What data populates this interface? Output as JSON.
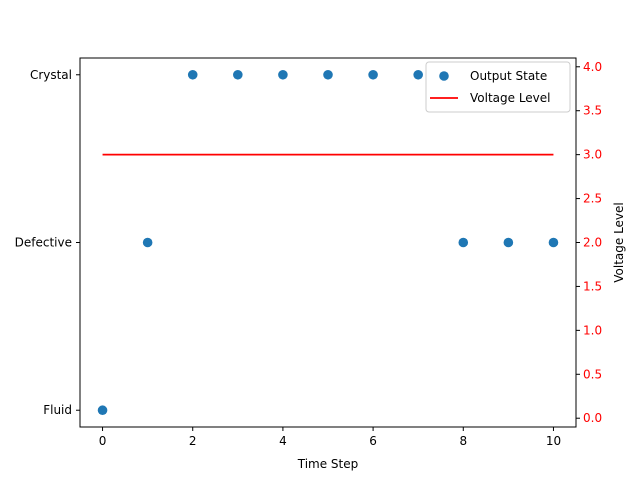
{
  "chart_data": {
    "type": "scatter",
    "title": "",
    "xlabel": "Time Step",
    "ylabel": "",
    "y2label": "Voltage Level",
    "xlim": [
      -0.5,
      10.5
    ],
    "xticks": [
      0,
      2,
      4,
      6,
      8,
      10
    ],
    "ylim": [
      -0.1,
      2.1
    ],
    "y_categories": [
      "Fluid",
      "Defective",
      "Crystal"
    ],
    "y2lim": [
      -0.1,
      4.1
    ],
    "y2ticks": [
      "0.0",
      "0.5",
      "1.0",
      "1.5",
      "2.0",
      "2.5",
      "3.0",
      "3.5",
      "4.0"
    ],
    "grid": false,
    "legend": "top-right",
    "series": [
      {
        "name": "Output State",
        "type": "scatter",
        "axis": "left",
        "color": "#1f77b4",
        "x": [
          0,
          1,
          2,
          3,
          4,
          5,
          6,
          7,
          8,
          9,
          10
        ],
        "y": [
          "Fluid",
          "Defective",
          "Crystal",
          "Crystal",
          "Crystal",
          "Crystal",
          "Crystal",
          "Crystal",
          "Defective",
          "Defective",
          "Defective"
        ]
      },
      {
        "name": "Voltage Level",
        "type": "line",
        "axis": "right",
        "color": "#ff0000",
        "x": [
          0,
          10
        ],
        "y": [
          3.0,
          3.0
        ]
      }
    ],
    "right_axis_color": "#ff0000"
  }
}
